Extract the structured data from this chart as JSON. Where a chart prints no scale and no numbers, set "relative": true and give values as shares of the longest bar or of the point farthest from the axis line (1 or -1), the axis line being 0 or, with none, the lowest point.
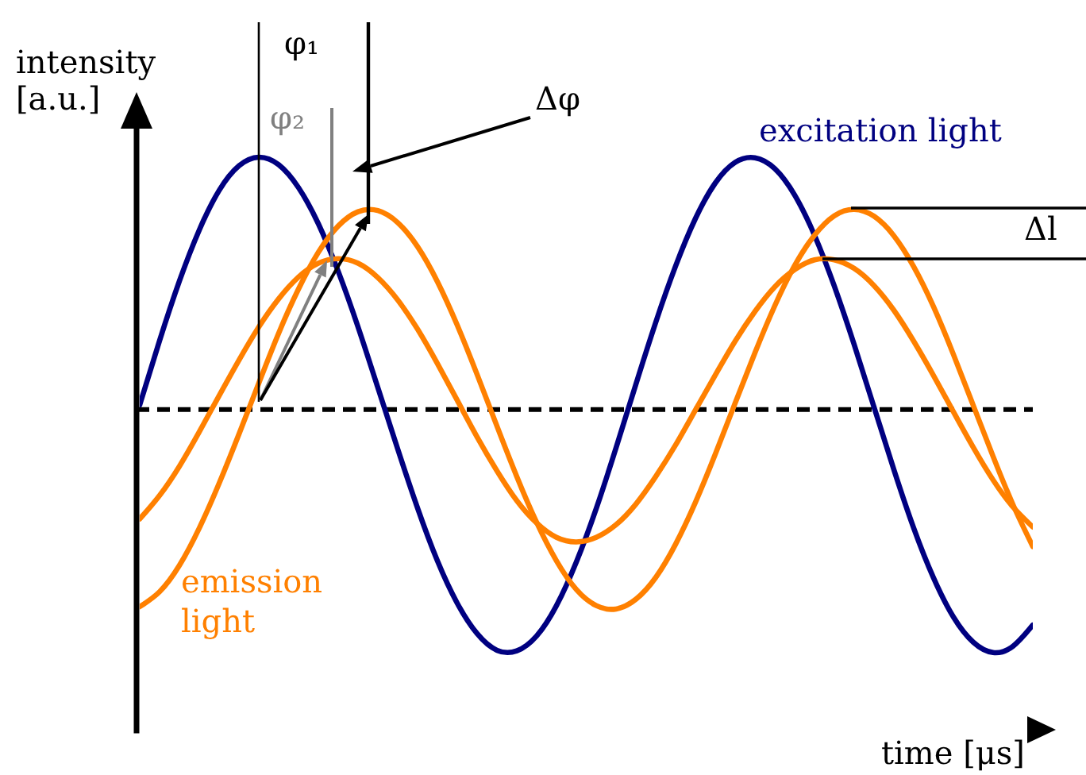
{
  "chart_data": {
    "type": "line",
    "relative": true,
    "xlabel": "time [μs]",
    "ylabel": "intensity [a.u.]",
    "categories": [
      null,
      null,
      null,
      null,
      null,
      null,
      null,
      null,
      null,
      null,
      null,
      null,
      null,
      null,
      null,
      null,
      null,
      null,
      null,
      null,
      null,
      null,
      null,
      null,
      null,
      null,
      null,
      null,
      null,
      null,
      null,
      null,
      null,
      null,
      null,
      null,
      null,
      null,
      null,
      null,
      null,
      null,
      null,
      null,
      null,
      null
    ],
    "series": [
      {
        "name": "excitation light",
        "color": "#000080",
        "values": [
          0.568,
          0.68,
          0.784,
          0.873,
          0.942,
          0.985,
          1.0,
          0.987,
          0.947,
          0.884,
          0.801,
          0.704,
          0.598,
          0.491,
          0.388,
          0.296,
          0.222,
          0.169,
          0.14,
          0.139,
          0.165,
          0.218,
          0.294,
          0.387,
          0.493,
          0.604,
          0.712,
          0.81,
          0.893,
          0.955,
          0.991,
          0.999,
          0.98,
          0.934,
          0.864,
          0.775,
          0.673,
          0.564,
          0.455,
          0.353,
          0.266,
          0.198,
          0.154,
          0.136,
          0.147,
          0.184
        ]
      },
      {
        "name": "emission light",
        "color": "#ff8000",
        "values": [
          0.216,
          0.242,
          0.288,
          0.353,
          0.431,
          0.517,
          0.606,
          0.693,
          0.77,
          0.834,
          0.88,
          0.905,
          0.907,
          0.886,
          0.844,
          0.783,
          0.707,
          0.621,
          0.531,
          0.443,
          0.363,
          0.296,
          0.246,
          0.218,
          0.212,
          0.229,
          0.267,
          0.325,
          0.398,
          0.482,
          0.571,
          0.659,
          0.741,
          0.811,
          0.864,
          0.898,
          0.909,
          0.897,
          0.863,
          0.809,
          0.739,
          0.656,
          0.567,
          0.478,
          0.394,
          0.321
        ]
      },
      {
        "color": "#ff8000",
        "values": [
          0.369,
          0.41,
          0.461,
          0.521,
          0.584,
          0.646,
          0.704,
          0.753,
          0.791,
          0.815,
          0.823,
          0.815,
          0.79,
          0.751,
          0.7,
          0.64,
          0.576,
          0.512,
          0.453,
          0.401,
          0.362,
          0.337,
          0.329,
          0.337,
          0.359,
          0.395,
          0.443,
          0.498,
          0.559,
          0.62,
          0.679,
          0.731,
          0.774,
          0.804,
          0.821,
          0.821,
          0.806,
          0.776,
          0.733,
          0.679,
          0.619,
          0.556,
          0.494,
          0.437,
          0.39,
          0.355
        ]
      }
    ],
    "ref_lines": [
      {
        "axis": "y",
        "value": 0.56,
        "line_style": "dashed",
        "color": "#000000"
      }
    ],
    "annotations": [
      "φ₁",
      "φ₂",
      "Δφ",
      "Δl"
    ],
    "legend": false,
    "grid": false,
    "marker": "none",
    "line_style": "solid",
    "tick_labels": false
  }
}
